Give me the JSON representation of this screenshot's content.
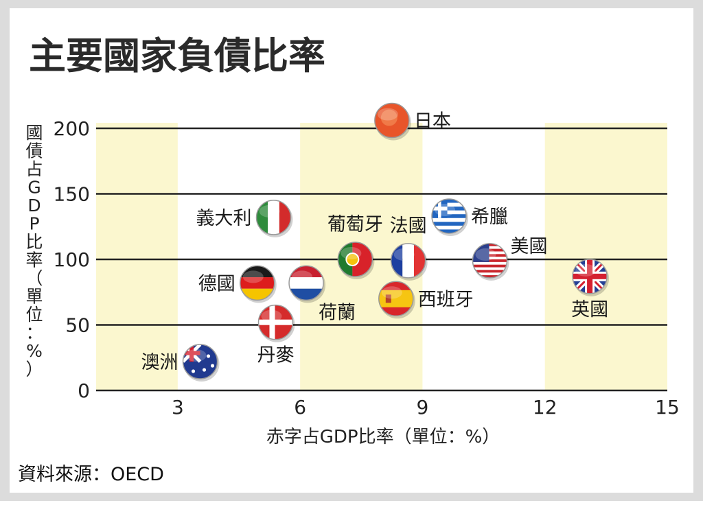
{
  "chart_data": {
    "type": "scatter",
    "title": "主要國家負債比率",
    "ylabel": "國債占GDP比率（單位：%）",
    "xlabel": "赤字占GDP比率（單位：%）",
    "source": "資料來源：OECD",
    "xlim": [
      1,
      15
    ],
    "ylim": [
      0,
      200
    ],
    "xticks": [
      "3",
      "6",
      "9",
      "12",
      "15"
    ],
    "yticks": [
      "0",
      "50",
      "100",
      "150",
      "200"
    ],
    "grid": true,
    "background_bands": [
      [
        1,
        3
      ],
      [
        6,
        9
      ],
      [
        12,
        15
      ]
    ],
    "points": [
      {
        "name": "日本",
        "x": 8.25,
        "y": 206,
        "flag": "japan-flag-icon",
        "label_pos": "right"
      },
      {
        "name": "義大利",
        "x": 5.35,
        "y": 132,
        "flag": "italy-flag-icon",
        "label_pos": "left"
      },
      {
        "name": "葡萄牙",
        "x": 7.35,
        "y": 100,
        "flag": "portugal-flag-icon",
        "label_pos": "top"
      },
      {
        "name": "法國",
        "x": 8.65,
        "y": 99,
        "flag": "france-flag-icon",
        "label_pos": "top"
      },
      {
        "name": "希臘",
        "x": 9.65,
        "y": 133,
        "flag": "greece-flag-icon",
        "label_pos": "right"
      },
      {
        "name": "美國",
        "x": 10.65,
        "y": 99,
        "flag": "usa-flag-icon",
        "label_pos": "top-right"
      },
      {
        "name": "英國",
        "x": 13.1,
        "y": 87,
        "flag": "uk-flag-icon",
        "label_pos": "bottom"
      },
      {
        "name": "德國",
        "x": 4.95,
        "y": 82,
        "flag": "germany-flag-icon",
        "label_pos": "left"
      },
      {
        "name": "荷蘭",
        "x": 6.15,
        "y": 82,
        "flag": "netherlands-flag-icon",
        "label_pos": "bottom-right"
      },
      {
        "name": "西班牙",
        "x": 8.35,
        "y": 70,
        "flag": "spain-flag-icon",
        "label_pos": "right"
      },
      {
        "name": "丹麥",
        "x": 5.4,
        "y": 52,
        "flag": "denmark-flag-icon",
        "label_pos": "bottom"
      },
      {
        "name": "澳洲",
        "x": 3.55,
        "y": 22,
        "flag": "australia-flag-icon",
        "label_pos": "left"
      }
    ]
  }
}
